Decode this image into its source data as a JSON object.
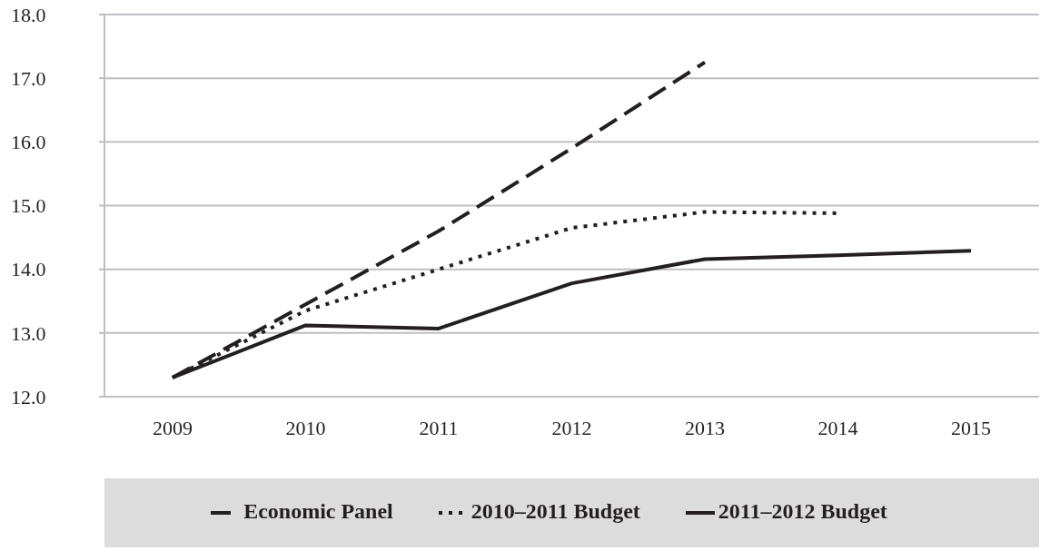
{
  "chart_data": {
    "type": "line",
    "categories": [
      "2009",
      "2010",
      "2011",
      "2012",
      "2013",
      "2014",
      "2015"
    ],
    "series": [
      {
        "name": "Economic Panel",
        "color": "#231f20",
        "line_style": "dashed",
        "values": [
          12.3,
          13.45,
          14.6,
          15.9,
          17.25,
          null,
          null
        ]
      },
      {
        "name": "2010–2011 Budget",
        "color": "#231f20",
        "line_style": "dotted",
        "values": [
          12.3,
          13.35,
          14.0,
          14.65,
          14.9,
          14.88,
          null
        ]
      },
      {
        "name": "2011–2012 Budget",
        "color": "#231f20",
        "line_style": "solid",
        "values": [
          12.3,
          13.12,
          13.07,
          13.78,
          14.16,
          14.22,
          14.29
        ]
      }
    ],
    "ylim": [
      12,
      18
    ],
    "yticks": [
      {
        "value": 12,
        "label": "12.0"
      },
      {
        "value": 13,
        "label": "13.0"
      },
      {
        "value": 14,
        "label": "14.0"
      },
      {
        "value": 15,
        "label": "15.0"
      },
      {
        "value": 16,
        "label": "16.0"
      },
      {
        "value": 17,
        "label": "17.0"
      },
      {
        "value": 18,
        "label": "18.0"
      }
    ],
    "grid": "y",
    "legend": "bottom",
    "marker": "none"
  }
}
